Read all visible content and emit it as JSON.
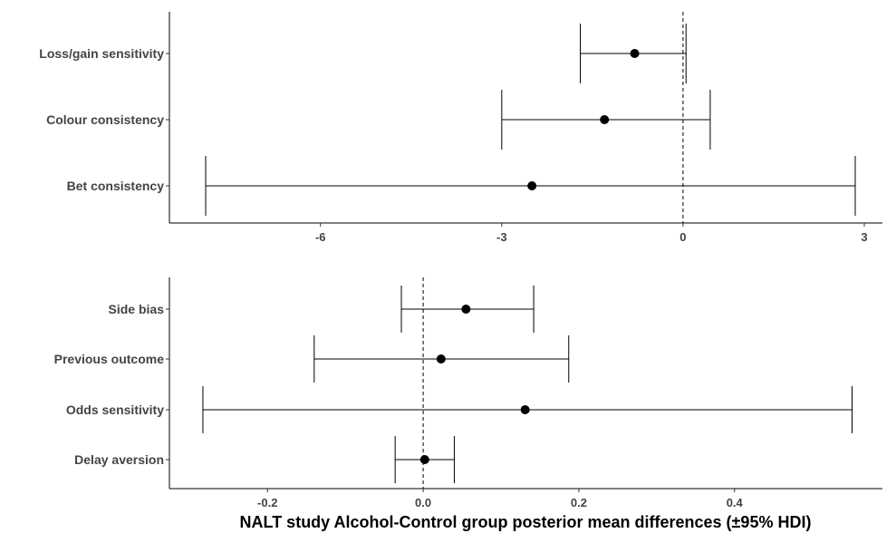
{
  "chart_data": [
    {
      "type": "forest",
      "categories": [
        "Loss/gain sensitivity",
        "Colour consistency",
        "Bet consistency"
      ],
      "values": [
        -0.8,
        -1.3,
        -2.5
      ],
      "lower": [
        -1.7,
        -3.0,
        -7.9
      ],
      "upper": [
        0.05,
        0.45,
        2.85
      ],
      "xlim": [
        -8.5,
        3.3
      ],
      "xticks": [
        -6,
        -3,
        0,
        3
      ],
      "reference_line": 0,
      "xlabel": "",
      "ylabel": ""
    },
    {
      "type": "forest",
      "categories": [
        "Side bias",
        "Previous outcome",
        "Odds sensitivity",
        "Delay aversion"
      ],
      "values": [
        0.055,
        0.023,
        0.131,
        0.002
      ],
      "lower": [
        -0.028,
        -0.14,
        -0.283,
        -0.036
      ],
      "upper": [
        0.142,
        0.187,
        0.551,
        0.04
      ],
      "xlim": [
        -0.326,
        0.59
      ],
      "xticks": [
        -0.2,
        0.0,
        0.2,
        0.4
      ],
      "reference_line": 0,
      "xlabel": "NALT study Alcohol-Control group posterior mean differences (±95% HDI)",
      "ylabel": ""
    }
  ],
  "colors": {
    "marks": "#000000",
    "labels": "#444444"
  }
}
